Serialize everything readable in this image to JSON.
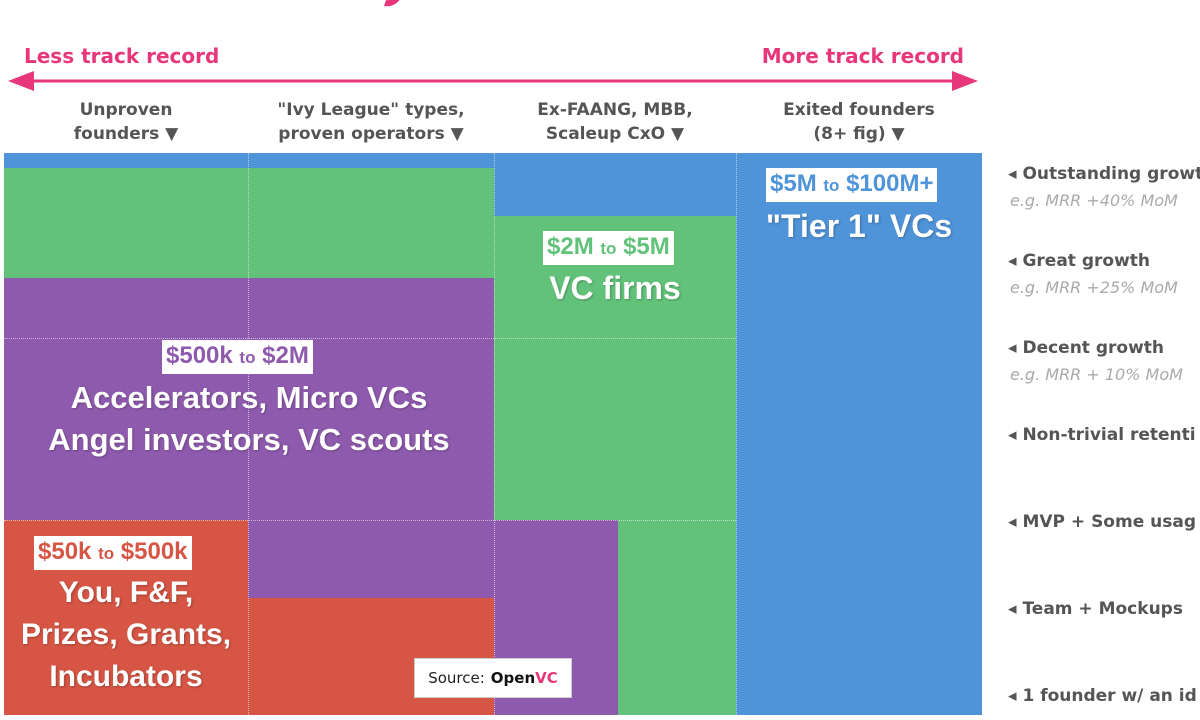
{
  "axis": {
    "left_label": "Less track record",
    "right_label": "More track record",
    "color": "#e8367a"
  },
  "columns": [
    {
      "label": "Unproven\nfounders ▼"
    },
    {
      "label": "\"Ivy League\" types,\nproven operators ▼"
    },
    {
      "label": "Ex-FAANG, MBB,\nScaleup CxO ▼"
    },
    {
      "label": "Exited founders\n(8+ fig) ▼"
    }
  ],
  "tiers": [
    {
      "low": "$5M",
      "to": "to",
      "high": "$100M+",
      "title": "\"Tier 1\" VCs",
      "color": "#4f93d8"
    },
    {
      "low": "$2M",
      "to": "to",
      "high": "$5M",
      "title": "VC firms",
      "color": "#62c27a"
    },
    {
      "low": "$500k",
      "to": "to",
      "high": "$2M",
      "title": "Accelerators, Micro VCs\nAngel investors, VC scouts",
      "color": "#8e5aad"
    },
    {
      "low": "$50k",
      "to": "to",
      "high": "$500k",
      "title": "You, F&F,\nPrizes, Grants,\nIncubators",
      "color": "#d65545"
    }
  ],
  "source": {
    "prefix": "Source:",
    "brand_open": "Open",
    "brand_vc": "VC"
  },
  "stages": [
    {
      "label": "◂ Outstanding growt",
      "example": "e.g. MRR +40% MoM"
    },
    {
      "label": "◂ Great growth",
      "example": "e.g. MRR +25% MoM"
    },
    {
      "label": "◂ Decent growth",
      "example": "e.g. MRR + 10% MoM"
    },
    {
      "label": "◂ Non-trivial retenti",
      "example": ""
    },
    {
      "label": "◂ MVP + Some usag",
      "example": ""
    },
    {
      "label": "◂ Team + Mockups",
      "example": ""
    },
    {
      "label": "◂ 1 founder w/ an id",
      "example": ""
    }
  ]
}
